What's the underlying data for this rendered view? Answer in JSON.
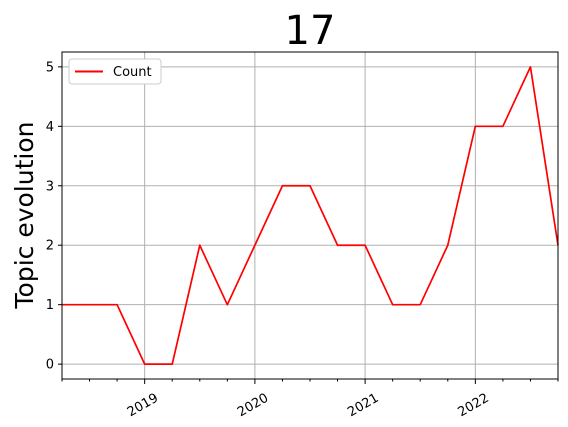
{
  "chart_data": {
    "type": "line",
    "title": "17",
    "xlabel": "",
    "ylabel": "Topic evolution",
    "x": [
      "2018-04",
      "2018-07",
      "2018-10",
      "2019-01",
      "2019-04",
      "2019-07",
      "2019-10",
      "2020-01",
      "2020-04",
      "2020-07",
      "2020-10",
      "2021-01",
      "2021-04",
      "2021-07",
      "2021-10",
      "2022-01",
      "2022-04",
      "2022-07",
      "2022-10"
    ],
    "xlim": [
      "2018-04",
      "2022-10"
    ],
    "x_ticks": [
      "2019",
      "2020",
      "2021",
      "2022"
    ],
    "ylim": [
      -0.25,
      5.25
    ],
    "y_ticks": [
      0,
      1,
      2,
      3,
      4,
      5
    ],
    "series": [
      {
        "name": "Count",
        "color": "#ff0000",
        "values": [
          1,
          1,
          1,
          0,
          0,
          2,
          1,
          2,
          3,
          3,
          2,
          2,
          1,
          1,
          2,
          4,
          4,
          5,
          2
        ]
      }
    ],
    "grid": true,
    "legend": "upper-left"
  }
}
